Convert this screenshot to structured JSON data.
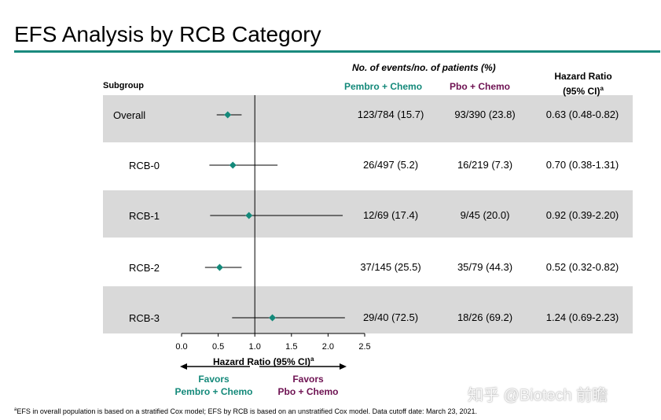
{
  "title": "EFS Analysis by RCB Category",
  "header": {
    "subgroup": "Subgroup",
    "events_header": "No. of events/no. of patients (%)",
    "group1": "Pembro + Chemo",
    "group2": "Pbo + Chemo",
    "hr_line1": "Hazard Ratio",
    "hr_line2": "(95% CI)",
    "hr_sup": "a"
  },
  "colors": {
    "accent": "#1a8a7e",
    "group1": "#14897a",
    "group2": "#6e1252",
    "marker": "#14897a",
    "band": "#d9d9d9"
  },
  "chart_data": {
    "type": "forest",
    "xlabel": "Hazard Ratio (95% CI)",
    "xlabel_sup": "a",
    "xlim": [
      0,
      2.5
    ],
    "xticks": [
      0,
      0.5,
      1.0,
      1.5,
      2.0,
      2.5
    ],
    "xtick_labels": [
      "0.0",
      "0.5",
      "1.0",
      "1.5",
      "2.0",
      "2.5"
    ],
    "reference_line": 1.0,
    "rows": [
      {
        "label": "Overall",
        "hr": 0.63,
        "lo": 0.48,
        "hi": 0.82,
        "g1": "123/784 (15.7)",
        "g2": "93/390 (23.8)",
        "hr_text": "0.63 (0.48-0.82)"
      },
      {
        "label": "RCB-0",
        "hr": 0.7,
        "lo": 0.38,
        "hi": 1.31,
        "g1": "26/497 (5.2)",
        "g2": "16/219 (7.3)",
        "hr_text": "0.70 (0.38-1.31)"
      },
      {
        "label": "RCB-1",
        "hr": 0.92,
        "lo": 0.39,
        "hi": 2.2,
        "g1": "12/69 (17.4)",
        "g2": "9/45 (20.0)",
        "hr_text": "0.92 (0.39-2.20)"
      },
      {
        "label": "RCB-2",
        "hr": 0.52,
        "lo": 0.32,
        "hi": 0.82,
        "g1": "37/145 (25.5)",
        "g2": "35/79 (44.3)",
        "hr_text": "0.52 (0.32-0.82)"
      },
      {
        "label": "RCB-3",
        "hr": 1.24,
        "lo": 0.69,
        "hi": 2.23,
        "g1": "29/40 (72.5)",
        "g2": "18/26 (69.2)",
        "hr_text": "1.24 (0.69-2.23)"
      }
    ],
    "favors_left_line1": "Favors",
    "favors_left_line2": "Pembro + Chemo",
    "favors_right_line1": "Favors",
    "favors_right_line2": "Pbo + Chemo"
  },
  "footnote": "EFS in overall population is based on a stratified Cox model; EFS by RCB is based on an unstratified Cox model. Data cutoff date: March 23, 2021.",
  "footnote_sup": "a",
  "watermark": "知乎 @Biotech 前瞻"
}
